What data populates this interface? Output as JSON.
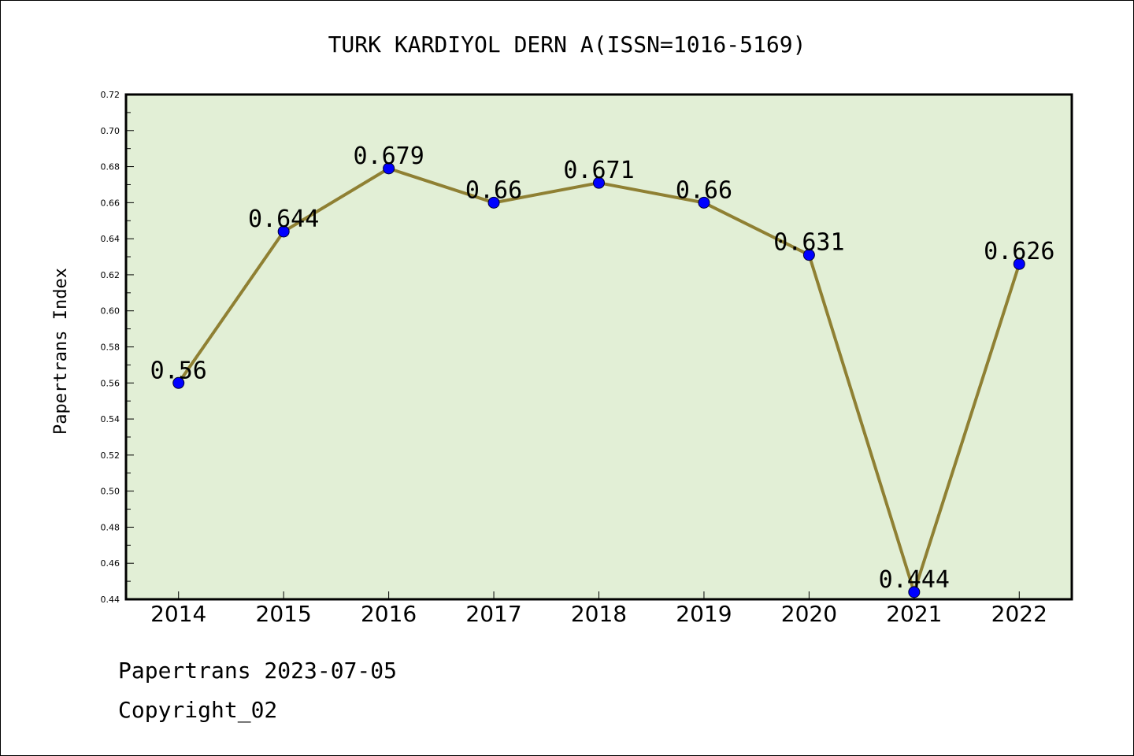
{
  "chart_data": {
    "type": "line",
    "title": "TURK KARDIYOL DERN A(ISSN=1016-5169)",
    "xlabel": "",
    "ylabel": "Papertrans Index",
    "categories": [
      "2014",
      "2015",
      "2016",
      "2017",
      "2018",
      "2019",
      "2020",
      "2021",
      "2022"
    ],
    "values": [
      0.56,
      0.644,
      0.679,
      0.66,
      0.671,
      0.66,
      0.631,
      0.444,
      0.626
    ],
    "data_labels": [
      "0.56",
      "0.644",
      "0.679",
      "0.66",
      "0.671",
      "0.66",
      "0.631",
      "0.444",
      "0.626"
    ],
    "ylim": [
      0.44,
      0.72
    ],
    "yticks": [
      "0.44",
      "0.46",
      "0.48",
      "0.50",
      "0.52",
      "0.54",
      "0.56",
      "0.58",
      "0.60",
      "0.62",
      "0.64",
      "0.66",
      "0.68",
      "0.70",
      "0.72"
    ],
    "grid": false,
    "colors": {
      "plot_background": "#e2efd6",
      "line": "#8f8033",
      "marker": "#0000ff"
    }
  },
  "footer": {
    "line1": "Papertrans 2023-07-05",
    "line2": "Copyright_02"
  }
}
